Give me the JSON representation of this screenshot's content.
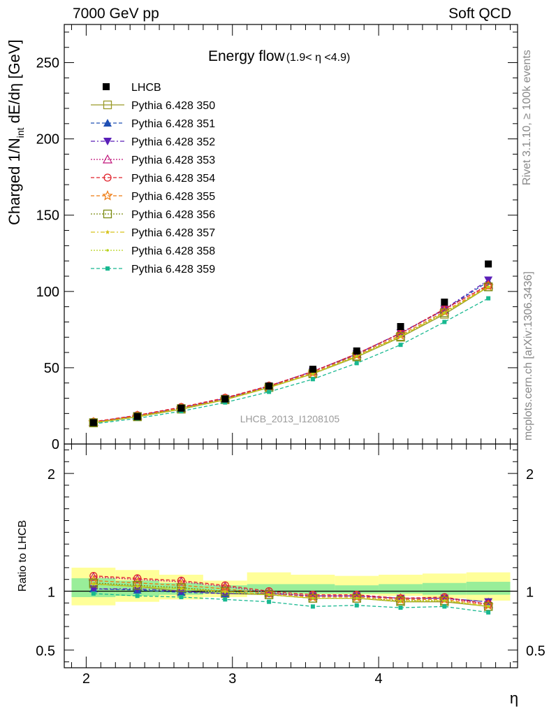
{
  "header": {
    "left": "7000 GeV pp",
    "right": "Soft QCD"
  },
  "side_labels": {
    "rivet": "Rivet 3.1.10, ≥ 100k events",
    "mcplots": "mcplots.cern.ch [arXiv:1306.3436]"
  },
  "chart_data": [
    {
      "type": "line",
      "panel": "main",
      "title": "Energy flow",
      "title_suffix": "(1.9< η <4.9)",
      "ylabel_parts": [
        "Charged 1/N",
        "int",
        " dE/dη [GeV]"
      ],
      "ylim": [
        0,
        275
      ],
      "yticks": [
        0,
        50,
        100,
        150,
        200,
        250
      ],
      "xlim": [
        1.85,
        4.95
      ],
      "x": [
        2.05,
        2.35,
        2.65,
        2.95,
        3.25,
        3.55,
        3.85,
        4.15,
        4.45,
        4.75
      ],
      "watermark": "LHCB_2013_I1208105",
      "legend_position": "top-left",
      "data": {
        "name": "LHCB",
        "color": "#000000",
        "marker": "square",
        "values": [
          14,
          18,
          23.5,
          29.5,
          38,
          49,
          61,
          77,
          93,
          118
        ]
      },
      "series": [
        {
          "name": "Pythia 6.428 350",
          "color": "#9a9a28",
          "dash": "",
          "marker": "open-square",
          "values": [
            13.8,
            17.8,
            22.8,
            29,
            37,
            46,
            57,
            70,
            85,
            103
          ]
        },
        {
          "name": "Pythia 6.428 351",
          "color": "#1f4fb4",
          "dash": "5,3",
          "marker": "triangle-up",
          "values": [
            14.2,
            18.5,
            23.5,
            29.8,
            37.8,
            47.5,
            58.8,
            72.5,
            88,
            106.5
          ]
        },
        {
          "name": "Pythia 6.428 352",
          "color": "#5a1fb8",
          "dash": "6,3,2,3",
          "marker": "triangle-down",
          "values": [
            14.3,
            18.6,
            23.6,
            29.9,
            37.9,
            47.6,
            59,
            72.8,
            88.4,
            107.5
          ]
        },
        {
          "name": "Pythia 6.428 353",
          "color": "#c0147a",
          "dash": "2,2",
          "marker": "open-triangle-up",
          "values": [
            14.4,
            18.7,
            23.8,
            30,
            38,
            47.7,
            59,
            72.5,
            88,
            104.5
          ]
        },
        {
          "name": "Pythia 6.428 354",
          "color": "#e0202a",
          "dash": "5,3",
          "marker": "open-circle",
          "values": [
            14.6,
            18.9,
            24.2,
            30.3,
            38.2,
            47.5,
            59.2,
            72.5,
            88.5,
            104
          ]
        },
        {
          "name": "Pythia 6.428 355",
          "color": "#ee7a10",
          "dash": "5,3",
          "marker": "open-star",
          "values": [
            14.2,
            18.3,
            23.5,
            29.5,
            37.5,
            46.6,
            58.2,
            71.3,
            86.8,
            103.5
          ]
        },
        {
          "name": "Pythia 6.428 356",
          "color": "#7a8a10",
          "dash": "2,2",
          "marker": "open-square",
          "values": [
            14,
            18,
            23.2,
            29.2,
            37.2,
            46.2,
            57.6,
            70.5,
            86,
            103
          ]
        },
        {
          "name": "Pythia 6.428 357",
          "color": "#d6c21a",
          "dash": "6,3,2,3",
          "marker": "small-star",
          "values": [
            13.9,
            17.9,
            23,
            29,
            37,
            46.2,
            57.5,
            70.5,
            86,
            103
          ]
        },
        {
          "name": "Pythia 6.428 358",
          "color": "#b8d21a",
          "dash": "2,2",
          "marker": "dot",
          "values": [
            13.9,
            17.9,
            23,
            29,
            37,
            46,
            57.4,
            70.4,
            86,
            103
          ]
        },
        {
          "name": "Pythia 6.428 359",
          "color": "#18b890",
          "dash": "5,3",
          "marker": "small-square",
          "values": [
            13.2,
            16.8,
            21.5,
            27.2,
            34.2,
            42.5,
            53,
            65,
            80,
            95.5
          ]
        }
      ]
    },
    {
      "type": "line",
      "panel": "ratio",
      "ylabel": "Ratio to LHCB",
      "ylim": [
        0.35,
        2.25
      ],
      "yticks": [
        0.5,
        1,
        2
      ],
      "ytick_labels": [
        "0.5",
        "1",
        "2"
      ],
      "xlim": [
        1.85,
        4.95
      ],
      "xticks": [
        2,
        3,
        4
      ],
      "xticks_labels": [
        "2",
        "3",
        "4"
      ],
      "xlabel": "η",
      "x": [
        2.05,
        2.35,
        2.65,
        2.95,
        3.25,
        3.55,
        3.85,
        4.15,
        4.45,
        4.75
      ],
      "band_edges": [
        1.9,
        2.2,
        2.5,
        2.8,
        3.1,
        3.4,
        3.7,
        4.0,
        4.3,
        4.6,
        4.9
      ],
      "band_outer_yellow": [
        [
          0.88,
          1.2
        ],
        [
          0.91,
          1.18
        ],
        [
          0.93,
          1.14
        ],
        [
          0.95,
          1.09
        ],
        [
          0.97,
          1.16
        ],
        [
          0.97,
          1.14
        ],
        [
          0.97,
          1.13
        ],
        [
          0.96,
          1.14
        ],
        [
          0.94,
          1.15
        ],
        [
          0.92,
          1.16
        ]
      ],
      "band_inner_green": [
        [
          0.95,
          1.11
        ],
        [
          0.96,
          1.09
        ],
        [
          0.97,
          1.07
        ],
        [
          0.98,
          1.05
        ],
        [
          0.98,
          1.06
        ],
        [
          0.98,
          1.06
        ],
        [
          0.98,
          1.05
        ],
        [
          0.98,
          1.06
        ],
        [
          0.97,
          1.07
        ],
        [
          0.97,
          1.08
        ]
      ],
      "series": [
        {
          "name": "Pythia 6.428 350",
          "color": "#9a9a28",
          "dash": "",
          "marker": "open-square",
          "values": [
            1.06,
            1.04,
            1.0,
            0.98,
            0.97,
            0.94,
            0.94,
            0.91,
            0.91,
            0.87
          ]
        },
        {
          "name": "Pythia 6.428 351",
          "color": "#1f4fb4",
          "dash": "5,3",
          "marker": "triangle-up",
          "values": [
            1.02,
            1.01,
            0.99,
            0.98,
            0.98,
            0.96,
            0.96,
            0.94,
            0.94,
            0.91
          ]
        },
        {
          "name": "Pythia 6.428 352",
          "color": "#5a1fb8",
          "dash": "6,3,2,3",
          "marker": "triangle-down",
          "values": [
            1.02,
            1.02,
            1.0,
            0.98,
            0.98,
            0.96,
            0.96,
            0.94,
            0.94,
            0.91
          ]
        },
        {
          "name": "Pythia 6.428 353",
          "color": "#c0147a",
          "dash": "2,2",
          "marker": "open-triangle-up",
          "values": [
            1.12,
            1.1,
            1.08,
            1.04,
            0.99,
            0.96,
            0.96,
            0.94,
            0.94,
            0.89
          ]
        },
        {
          "name": "Pythia 6.428 354",
          "color": "#e0202a",
          "dash": "5,3",
          "marker": "open-circle",
          "values": [
            1.13,
            1.11,
            1.09,
            1.05,
            1.0,
            0.97,
            0.97,
            0.94,
            0.95,
            0.89
          ]
        },
        {
          "name": "Pythia 6.428 355",
          "color": "#ee7a10",
          "dash": "5,3",
          "marker": "open-star",
          "values": [
            1.09,
            1.07,
            1.05,
            1.02,
            0.98,
            0.95,
            0.95,
            0.93,
            0.93,
            0.88
          ]
        },
        {
          "name": "Pythia 6.428 356",
          "color": "#7a8a10",
          "dash": "2,2",
          "marker": "open-square",
          "values": [
            1.07,
            1.05,
            1.03,
            1.0,
            0.97,
            0.94,
            0.94,
            0.92,
            0.92,
            0.87
          ]
        },
        {
          "name": "Pythia 6.428 357",
          "color": "#d6c21a",
          "dash": "6,3,2,3",
          "marker": "small-star",
          "values": [
            1.06,
            1.04,
            1.02,
            1.0,
            0.97,
            0.94,
            0.94,
            0.92,
            0.92,
            0.87
          ]
        },
        {
          "name": "Pythia 6.428 358",
          "color": "#b8d21a",
          "dash": "2,2",
          "marker": "dot",
          "values": [
            1.06,
            1.04,
            1.02,
            0.99,
            0.97,
            0.94,
            0.94,
            0.91,
            0.92,
            0.87
          ]
        },
        {
          "name": "Pythia 6.428 359",
          "color": "#18b890",
          "dash": "5,3",
          "marker": "small-square",
          "values": [
            0.98,
            0.96,
            0.95,
            0.93,
            0.91,
            0.87,
            0.88,
            0.86,
            0.87,
            0.82
          ]
        }
      ]
    }
  ]
}
